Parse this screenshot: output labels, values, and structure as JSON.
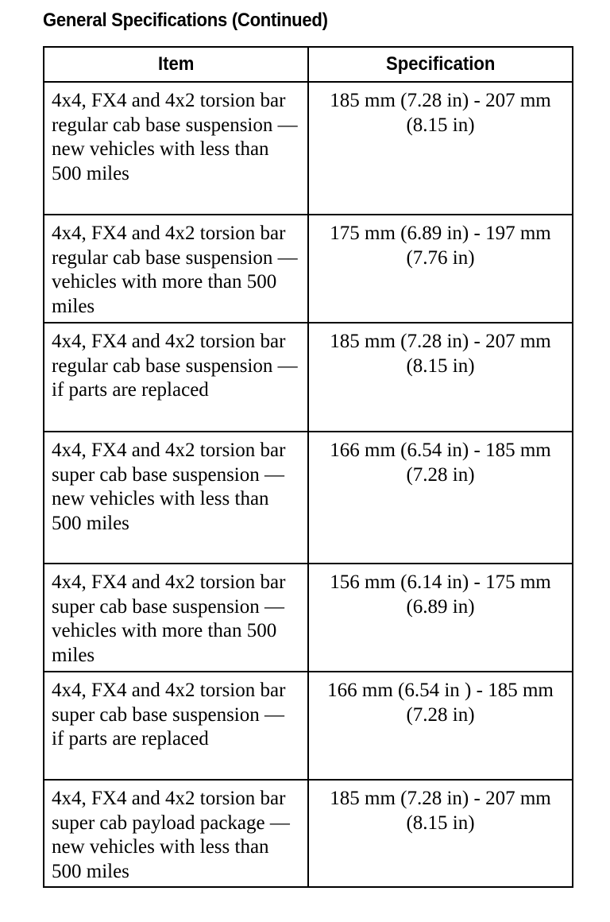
{
  "title": "General Specifications (Continued)",
  "table": {
    "headers": [
      "Item",
      "Specification"
    ],
    "rows": [
      {
        "item": "4x4, FX4 and 4x2 torsion bar regular cab base suspension — new vehicles with less than 500 miles",
        "spec": "185 mm (7.28 in) - 207 mm (8.15 in)"
      },
      {
        "item": "4x4, FX4 and 4x2 torsion bar regular cab base suspension — vehicles with more than 500 miles",
        "spec": "175 mm (6.89 in) - 197 mm (7.76 in)"
      },
      {
        "item": "4x4, FX4 and 4x2 torsion bar regular cab base suspension — if parts are replaced",
        "spec": "185 mm (7.28 in) - 207 mm (8.15 in)"
      },
      {
        "item": "4x4, FX4 and 4x2 torsion bar super cab base suspension — new vehicles with less than 500 miles",
        "spec": "166 mm (6.54 in) - 185 mm (7.28 in)"
      },
      {
        "item": "4x4, FX4 and 4x2 torsion bar super cab base suspension — vehicles with more than 500 miles",
        "spec": "156 mm (6.14 in) - 175 mm (6.89 in)"
      },
      {
        "item": "4x4, FX4 and 4x2 torsion bar super cab base suspension — if parts are replaced",
        "spec": "166 mm (6.54 in ) - 185 mm (7.28 in)"
      },
      {
        "item": "4x4, FX4 and 4x2 torsion bar super cab payload package — new vehicles with less than 500 miles",
        "spec": "185 mm (7.28 in) - 207 mm (8.15 in)"
      }
    ]
  }
}
